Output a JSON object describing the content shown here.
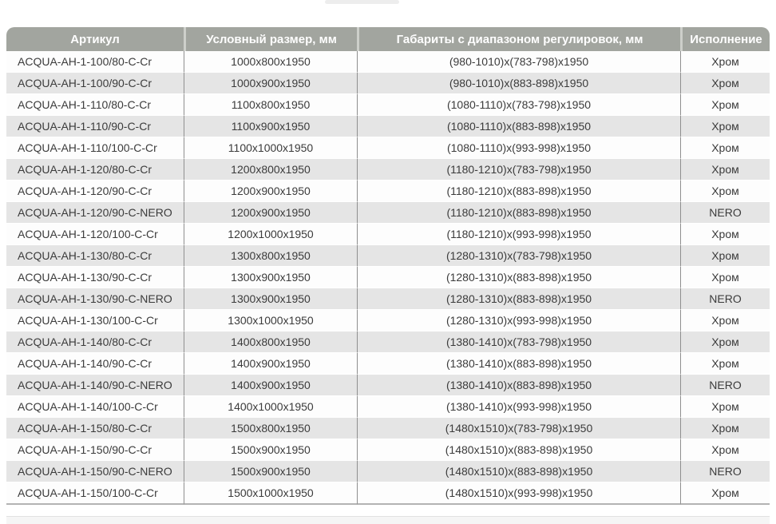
{
  "colors": {
    "header_bg": "#a2a59f",
    "header_text": "#fefefe",
    "row_bg": "#fdfdfd",
    "row_alt_bg": "#e5e5e5",
    "grid_line": "#8f8f8f",
    "body_text": "#3b3b3b"
  },
  "table": {
    "columns": [
      "Артикул",
      "Условный размер, мм",
      "Габариты с диапазоном регулировок, мм",
      "Исполнение"
    ],
    "rows": [
      [
        "ACQUA-AH-1-100/80-C-Cr",
        "1000x800x1950",
        "(980-1010)x(783-798)x1950",
        "Хром"
      ],
      [
        "ACQUA-AH-1-100/90-C-Cr",
        "1000x900x1950",
        "(980-1010)x(883-898)x1950",
        "Хром"
      ],
      [
        "ACQUA-AH-1-110/80-C-Cr",
        "1100x800x1950",
        "(1080-1110)x(783-798)x1950",
        "Хром"
      ],
      [
        "ACQUA-AH-1-110/90-C-Cr",
        "1100x900x1950",
        "(1080-1110)x(883-898)x1950",
        "Хром"
      ],
      [
        "ACQUA-AH-1-110/100-C-Cr",
        "1100x1000x1950",
        "(1080-1110)x(993-998)x1950",
        "Хром"
      ],
      [
        "ACQUA-AH-1-120/80-C-Cr",
        "1200x800x1950",
        "(1180-1210)x(783-798)x1950",
        "Хром"
      ],
      [
        "ACQUA-AH-1-120/90-C-Cr",
        "1200x900x1950",
        "(1180-1210)x(883-898)x1950",
        "Хром"
      ],
      [
        "ACQUA-AH-1-120/90-C-NERO",
        "1200x900x1950",
        "(1180-1210)x(883-898)x1950",
        "NERO"
      ],
      [
        "ACQUA-AH-1-120/100-C-Cr",
        "1200x1000x1950",
        "(1180-1210)x(993-998)x1950",
        "Хром"
      ],
      [
        "ACQUA-AH-1-130/80-C-Cr",
        "1300x800x1950",
        "(1280-1310)x(783-798)x1950",
        "Хром"
      ],
      [
        "ACQUA-AH-1-130/90-C-Cr",
        "1300x900x1950",
        "(1280-1310)x(883-898)x1950",
        "Хром"
      ],
      [
        "ACQUA-AH-1-130/90-C-NERO",
        "1300x900x1950",
        "(1280-1310)x(883-898)x1950",
        "NERO"
      ],
      [
        "ACQUA-AH-1-130/100-C-Cr",
        "1300x1000x1950",
        "(1280-1310)x(993-998)x1950",
        "Хром"
      ],
      [
        "ACQUA-AH-1-140/80-C-Cr",
        "1400x800x1950",
        "(1380-1410)x(783-798)x1950",
        "Хром"
      ],
      [
        "ACQUA-AH-1-140/90-C-Cr",
        "1400x900x1950",
        "(1380-1410)x(883-898)x1950",
        "Хром"
      ],
      [
        "ACQUA-AH-1-140/90-C-NERO",
        "1400x900x1950",
        "(1380-1410)x(883-898)x1950",
        "NERO"
      ],
      [
        "ACQUA-AH-1-140/100-C-Cr",
        "1400x1000x1950",
        "(1380-1410)x(993-998)x1950",
        "Хром"
      ],
      [
        "ACQUA-AH-1-150/80-C-Cr",
        "1500x800x1950",
        "(1480x1510)x(783-798)x1950",
        "Хром"
      ],
      [
        "ACQUA-AH-1-150/90-C-Cr",
        "1500x900x1950",
        "(1480x1510)x(883-898)x1950",
        "Хром"
      ],
      [
        "ACQUA-AH-1-150/90-C-NERO",
        "1500x900x1950",
        "(1480x1510)x(883-898)x1950",
        "NERO"
      ],
      [
        "ACQUA-AH-1-150/100-C-Cr",
        "1500x1000x1950",
        "(1480x1510)x(993-998)x1950",
        "Хром"
      ]
    ],
    "cell_names": [
      "cell-article",
      "cell-size",
      "cell-dimensions",
      "cell-finish"
    ]
  },
  "chart_data": {
    "type": "table",
    "title": "",
    "columns": [
      "Артикул",
      "Условный размер, мм",
      "Габариты с диапазоном регулировок, мм",
      "Исполнение"
    ],
    "row_count": 21
  }
}
